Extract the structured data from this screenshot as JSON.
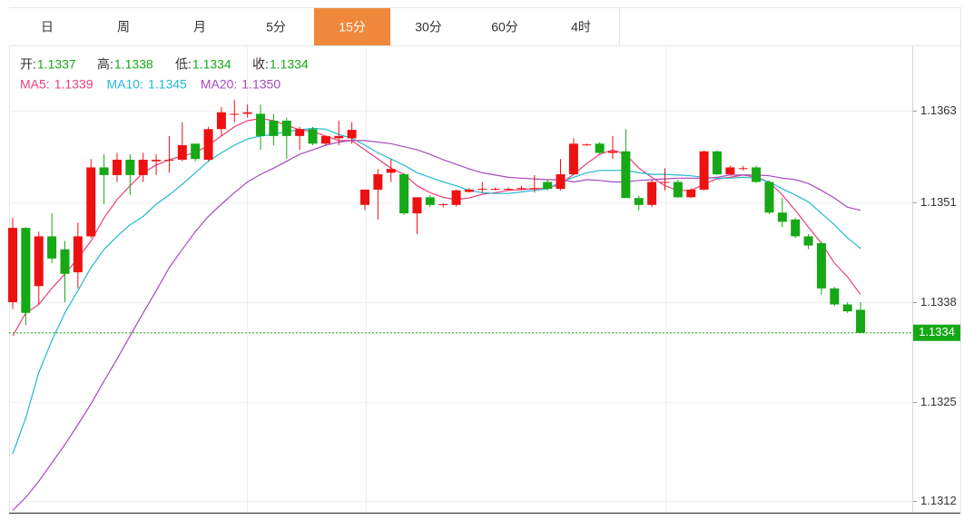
{
  "tabs": [
    "日",
    "周",
    "月",
    "5分",
    "15分",
    "30分",
    "60分",
    "4时"
  ],
  "active_tab": 4,
  "chart_data": {
    "type": "candlestick",
    "ohlc_labels": [
      "开:",
      "高:",
      "低:",
      "收:"
    ],
    "up_color": "#ee1111",
    "down_color": "#16a816",
    "open": [
      1.1338,
      1.13477,
      1.13401,
      1.13466,
      1.13449,
      1.13419,
      1.13466,
      1.13556,
      1.13546,
      1.13566,
      1.13546,
      1.13564,
      1.13565,
      1.13566,
      1.13587,
      1.13566,
      1.13606,
      1.13625,
      1.13626,
      1.13626,
      1.13617,
      1.13617,
      1.13597,
      1.13606,
      1.13587,
      1.13594,
      1.13594,
      1.13507,
      1.13527,
      1.13549,
      1.13547,
      1.13496,
      1.13517,
      1.13507,
      1.13507,
      1.13524,
      1.13527,
      1.13527,
      1.13527,
      1.13528,
      1.13528,
      1.13537,
      1.13528,
      1.13547,
      1.13585,
      1.13587,
      1.13575,
      1.13577,
      1.13516,
      1.13507,
      1.13536,
      1.13537,
      1.13517,
      1.13527,
      1.13577,
      1.13547,
      1.13554,
      1.13556,
      1.13537,
      1.13497,
      1.13488,
      1.13466,
      1.13457,
      1.13398,
      1.13377,
      1.1337
    ],
    "high": [
      1.1349,
      1.13478,
      1.13472,
      1.13496,
      1.1346,
      1.13484,
      1.13567,
      1.13573,
      1.13575,
      1.13573,
      1.13575,
      1.13573,
      1.13597,
      1.13615,
      1.13587,
      1.13609,
      1.13635,
      1.13644,
      1.13638,
      1.13638,
      1.13626,
      1.13621,
      1.13609,
      1.13609,
      1.13597,
      1.13617,
      1.13615,
      1.13527,
      1.13554,
      1.13567,
      1.13549,
      1.13517,
      1.1352,
      1.13509,
      1.13527,
      1.13529,
      1.13537,
      1.1353,
      1.1353,
      1.13532,
      1.13546,
      1.1354,
      1.13567,
      1.13594,
      1.13587,
      1.13589,
      1.13597,
      1.13606,
      1.13519,
      1.1354,
      1.13555,
      1.1354,
      1.13529,
      1.13578,
      1.13578,
      1.13558,
      1.13558,
      1.13558,
      1.13539,
      1.13516,
      1.1349,
      1.13469,
      1.13459,
      1.134,
      1.1338,
      1.1338
    ],
    "low": [
      1.13371,
      1.1335,
      1.13377,
      1.13431,
      1.1338,
      1.13398,
      1.13464,
      1.13508,
      1.13537,
      1.1352,
      1.13537,
      1.13546,
      1.13549,
      1.13564,
      1.13564,
      1.13564,
      1.13597,
      1.13615,
      1.13621,
      1.13579,
      1.13585,
      1.13567,
      1.13579,
      1.13585,
      1.13585,
      1.13585,
      1.13587,
      1.135,
      1.13488,
      1.13537,
      1.13494,
      1.13469,
      1.13504,
      1.13504,
      1.13505,
      1.13523,
      1.13523,
      1.13526,
      1.13526,
      1.13526,
      1.13523,
      1.13526,
      1.13526,
      1.13546,
      1.13584,
      1.13574,
      1.13567,
      1.13516,
      1.135,
      1.13504,
      1.13526,
      1.13516,
      1.13516,
      1.13526,
      1.13546,
      1.13546,
      1.13552,
      1.13536,
      1.13495,
      1.13478,
      1.13464,
      1.13449,
      1.1339,
      1.13375,
      1.13366,
      1.1334
    ],
    "close": [
      1.13477,
      1.13366,
      1.13466,
      1.13437,
      1.13417,
      1.13466,
      1.13556,
      1.13546,
      1.13566,
      1.13546,
      1.13566,
      1.13566,
      1.13566,
      1.13585,
      1.13567,
      1.13606,
      1.13628,
      1.13626,
      1.13628,
      1.13597,
      1.13597,
      1.13597,
      1.13606,
      1.13587,
      1.13597,
      1.13597,
      1.13605,
      1.13527,
      1.13547,
      1.13554,
      1.13496,
      1.13517,
      1.13507,
      1.13508,
      1.13526,
      1.13527,
      1.13528,
      1.13528,
      1.13528,
      1.13529,
      1.13529,
      1.13528,
      1.13547,
      1.13587,
      1.13586,
      1.13575,
      1.13577,
      1.13516,
      1.13507,
      1.13537,
      1.13537,
      1.13517,
      1.13527,
      1.13577,
      1.13547,
      1.13556,
      1.13555,
      1.13537,
      1.13497,
      1.13485,
      1.13466,
      1.13454,
      1.13398,
      1.13377,
      1.13368,
      1.1334
    ],
    "series": [
      {
        "name": "MA5:",
        "color": "#e8417a",
        "last_label": "1.1339",
        "values": [
          1.13336,
          1.13366,
          1.13377,
          1.13398,
          1.13417,
          1.13437,
          1.1346,
          1.1349,
          1.13514,
          1.13532,
          1.13549,
          1.13559,
          1.13566,
          1.13571,
          1.13575,
          1.13585,
          1.13597,
          1.13609,
          1.13617,
          1.1362,
          1.13617,
          1.13611,
          1.13605,
          1.13603,
          1.13597,
          1.13591,
          1.13591,
          1.13579,
          1.13567,
          1.13555,
          1.13547,
          1.13532,
          1.13523,
          1.13517,
          1.13514,
          1.13516,
          1.13521,
          1.13523,
          1.13526,
          1.13527,
          1.13528,
          1.13529,
          1.13534,
          1.13547,
          1.13561,
          1.13573,
          1.13579,
          1.13573,
          1.13555,
          1.13543,
          1.13532,
          1.13526,
          1.13526,
          1.13534,
          1.13541,
          1.13543,
          1.13546,
          1.13543,
          1.13537,
          1.1352,
          1.135,
          1.13478,
          1.13457,
          1.13431,
          1.13413,
          1.1339
        ]
      },
      {
        "name": "MA10:",
        "color": "#25b9cf",
        "last_label": "1.1345",
        "values": [
          1.13182,
          1.13229,
          1.13288,
          1.1333,
          1.13366,
          1.13395,
          1.13425,
          1.13449,
          1.13466,
          1.13481,
          1.13492,
          1.13508,
          1.1352,
          1.13534,
          1.13549,
          1.13564,
          1.13575,
          1.13585,
          1.13593,
          1.13597,
          1.13599,
          1.13603,
          1.13605,
          1.13607,
          1.13606,
          1.13599,
          1.13594,
          1.13585,
          1.13575,
          1.13567,
          1.13559,
          1.13549,
          1.13543,
          1.13537,
          1.13532,
          1.13526,
          1.13523,
          1.13522,
          1.13522,
          1.13524,
          1.13526,
          1.13528,
          1.13537,
          1.13543,
          1.13549,
          1.13552,
          1.13552,
          1.13552,
          1.13549,
          1.13547,
          1.13547,
          1.13546,
          1.13545,
          1.13543,
          1.13542,
          1.13542,
          1.13543,
          1.13542,
          1.13537,
          1.13528,
          1.1352,
          1.13511,
          1.13496,
          1.13481,
          1.13464,
          1.1345
        ]
      },
      {
        "name": "MA20:",
        "color": "#a64bbd",
        "last_label": "1.1350",
        "values": [
          1.13108,
          1.13125,
          1.13146,
          1.1317,
          1.13194,
          1.1322,
          1.13247,
          1.13277,
          1.13306,
          1.13336,
          1.13366,
          1.13395,
          1.13425,
          1.13449,
          1.13472,
          1.13492,
          1.13508,
          1.13523,
          1.13537,
          1.13547,
          1.13555,
          1.13564,
          1.13573,
          1.13579,
          1.13585,
          1.13589,
          1.13591,
          1.13591,
          1.13589,
          1.13587,
          1.13583,
          1.13579,
          1.13573,
          1.13566,
          1.1356,
          1.13554,
          1.13549,
          1.13546,
          1.13543,
          1.13542,
          1.13541,
          1.1354,
          1.1354,
          1.13537,
          1.1354,
          1.13539,
          1.13537,
          1.13537,
          1.13539,
          1.1354,
          1.13541,
          1.13542,
          1.13542,
          1.13542,
          1.13543,
          1.13546,
          1.13546,
          1.13546,
          1.13545,
          1.13542,
          1.1354,
          1.13535,
          1.13526,
          1.13516,
          1.13504,
          1.135
        ]
      }
    ],
    "ylim": [
      1.13105,
      1.13713
    ],
    "yticks": [
      1.1363,
      1.1351,
      1.1338,
      1.1325,
      1.1312
    ],
    "grid": true
  }
}
